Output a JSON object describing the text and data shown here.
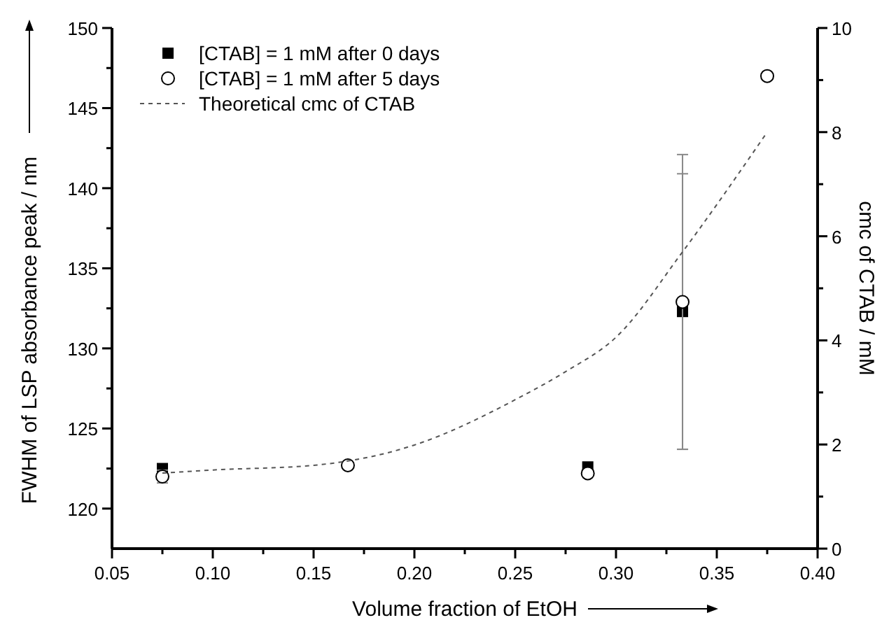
{
  "chart_data": {
    "type": "scatter",
    "xlabel": "Volume fraction of EtOH",
    "ylabel": "FWHM of LSP absorbance peak / nm",
    "y2label": "cmc of CTAB / mM",
    "xlim": [
      0.05,
      0.4
    ],
    "ylim": [
      117.5,
      150
    ],
    "y2lim": [
      0,
      10
    ],
    "xticks": [
      {
        "value": 0.05,
        "label": "0.05"
      },
      {
        "value": 0.075,
        "label": null
      },
      {
        "value": 0.1,
        "label": "0.10"
      },
      {
        "value": 0.125,
        "label": null
      },
      {
        "value": 0.15,
        "label": "0.15"
      },
      {
        "value": 0.175,
        "label": null
      },
      {
        "value": 0.2,
        "label": "0.20"
      },
      {
        "value": 0.225,
        "label": null
      },
      {
        "value": 0.25,
        "label": "0.25"
      },
      {
        "value": 0.275,
        "label": null
      },
      {
        "value": 0.3,
        "label": "0.30"
      },
      {
        "value": 0.325,
        "label": null
      },
      {
        "value": 0.35,
        "label": "0.35"
      },
      {
        "value": 0.375,
        "label": null
      },
      {
        "value": 0.4,
        "label": "0.40"
      }
    ],
    "yticks": [
      120,
      {
        "value": 122.5,
        "label": null
      },
      125,
      {
        "value": 127.5,
        "label": null
      },
      130,
      {
        "value": 132.5,
        "label": null
      },
      135,
      {
        "value": 137.5,
        "label": null
      },
      140,
      {
        "value": 142.5,
        "label": null
      },
      145,
      {
        "value": 147.5,
        "label": null
      },
      150
    ],
    "y2ticks": [
      0,
      {
        "value": 1,
        "label": null
      },
      2,
      {
        "value": 3,
        "label": null
      },
      4,
      {
        "value": 5,
        "label": null
      },
      6,
      {
        "value": 7,
        "label": null
      },
      8,
      {
        "value": 9,
        "label": null
      },
      10
    ],
    "grid": false,
    "legend": "top left",
    "x": [
      0.075,
      0.167,
      0.286,
      0.333,
      0.375
    ],
    "series": [
      {
        "name": "[CTAB] = 1 mM after 0 days",
        "type": "scatter",
        "marker": "square",
        "color": "#000000",
        "values": [
          122.5,
          null,
          122.6,
          132.3,
          null
        ],
        "errors": [
          null,
          null,
          null,
          8.6,
          null
        ]
      },
      {
        "name": "[CTAB] = 1 mM after 5 days",
        "type": "scatter",
        "marker": "circle",
        "color": "#000000",
        "values": [
          122.0,
          122.7,
          122.2,
          132.9,
          147.0
        ],
        "errors": [
          0.4,
          null,
          null,
          9.2,
          null
        ]
      },
      {
        "name": "Theoretical cmc of CTAB",
        "type": "line",
        "axis": "y2",
        "marker": "none",
        "line_style": "dashed",
        "color": "#555555",
        "x": [
          0.075,
          0.1,
          0.15,
          0.2,
          0.25,
          0.275,
          0.3,
          0.333,
          0.375
        ],
        "values": [
          1.45,
          1.51,
          1.6,
          1.99,
          2.86,
          3.4,
          4.06,
          5.7,
          8.0
        ]
      }
    ]
  }
}
